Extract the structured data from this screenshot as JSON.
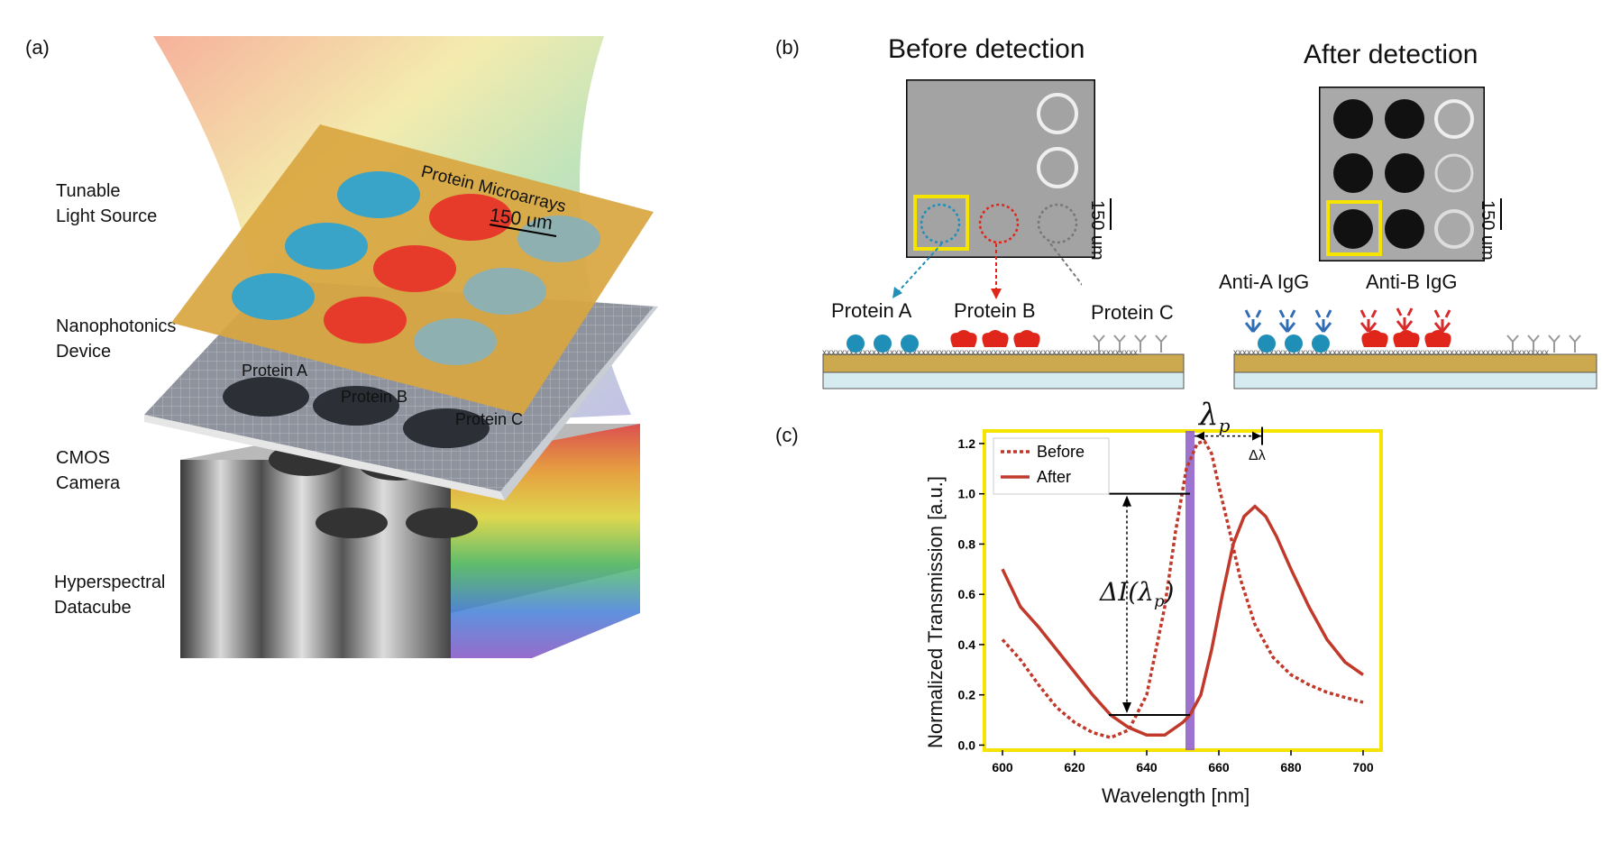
{
  "panels": {
    "a": "(a)",
    "b": "(b)",
    "c": "(c)"
  },
  "panel_a": {
    "layers": [
      {
        "line1": "Tunable",
        "line2": "Light Source"
      },
      {
        "line1": "Nanophotonics",
        "line2": "Device"
      },
      {
        "line1": "CMOS",
        "line2": "Camera"
      },
      {
        "line1": "Hyperspectral",
        "line2": "Datacube"
      }
    ],
    "microarray_title": "Protein Microarrays",
    "scale_bar": "150 um",
    "proteins": [
      "Protein A",
      "Protein B",
      "Protein C"
    ],
    "colors": {
      "protein_a": "#3aa3c8",
      "protein_b": "#e63a2b",
      "protein_c": "#8fb0b0",
      "device": "#d9a640"
    }
  },
  "panel_b": {
    "before_title": "Before detection",
    "after_title": "After detection",
    "scale_bar": "150 um",
    "proteins": [
      "Protein A",
      "Protein B",
      "Protein C"
    ],
    "antibodies": [
      "Anti-A IgG",
      "Anti-B IgG"
    ],
    "colors": {
      "protein_a": "#1f8fb8",
      "protein_b": "#e0261a",
      "anti_a": "#2f6db5",
      "anti_b": "#d92a2a",
      "highlight": "#f5e400"
    }
  },
  "chart_data": {
    "type": "line",
    "title": "",
    "xlabel": "Wavelength [nm]",
    "ylabel": "Normalized Transmission [a.u.]",
    "xlim": [
      595,
      705
    ],
    "ylim": [
      -0.02,
      1.25
    ],
    "xticks": [
      "600",
      "620",
      "640",
      "660",
      "680",
      "700"
    ],
    "yticks": [
      "0.0",
      "0.2",
      "0.4",
      "0.6",
      "0.8",
      "1.0",
      "1.2"
    ],
    "legend": "top-left",
    "grid": false,
    "series": [
      {
        "name": "Before",
        "style": "dotted",
        "color": "#c0392b",
        "x": [
          600,
          605,
          610,
          615,
          620,
          625,
          630,
          635,
          640,
          645,
          648,
          651,
          654,
          656,
          658,
          660,
          663,
          666,
          670,
          675,
          680,
          685,
          690,
          695,
          700
        ],
        "y": [
          0.42,
          0.34,
          0.24,
          0.15,
          0.09,
          0.05,
          0.03,
          0.06,
          0.2,
          0.55,
          0.85,
          1.1,
          1.2,
          1.21,
          1.16,
          1.03,
          0.85,
          0.66,
          0.48,
          0.35,
          0.28,
          0.24,
          0.21,
          0.19,
          0.17
        ]
      },
      {
        "name": "After",
        "style": "solid",
        "color": "#c0392b",
        "x": [
          600,
          605,
          610,
          615,
          620,
          625,
          630,
          635,
          640,
          645,
          650,
          652,
          655,
          658,
          661,
          664,
          667,
          670,
          673,
          676,
          680,
          685,
          690,
          695,
          700
        ],
        "y": [
          0.7,
          0.55,
          0.47,
          0.38,
          0.29,
          0.2,
          0.12,
          0.07,
          0.04,
          0.04,
          0.09,
          0.12,
          0.2,
          0.38,
          0.6,
          0.8,
          0.91,
          0.95,
          0.91,
          0.83,
          0.7,
          0.55,
          0.42,
          0.33,
          0.28
        ]
      }
    ],
    "lambda_p": 652,
    "annotations": {
      "lambda": "λ",
      "lambda_sub": "p",
      "delta_lambda": "Δλ",
      "delta_i": "ΔI(λ",
      "delta_i_sub": "p",
      "delta_i_close": ")"
    }
  }
}
